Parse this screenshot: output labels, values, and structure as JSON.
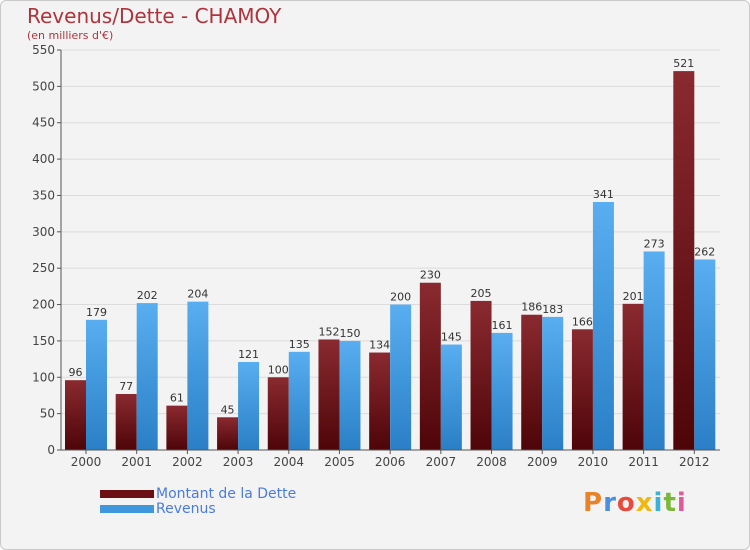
{
  "header": {
    "title": "Revenus/Dette - CHAMOY",
    "subtitle": "(en milliers d'€)"
  },
  "chart_data": {
    "type": "bar",
    "categories": [
      "2000",
      "2001",
      "2002",
      "2003",
      "2004",
      "2005",
      "2006",
      "2007",
      "2008",
      "2009",
      "2010",
      "2011",
      "2012"
    ],
    "series": [
      {
        "name": "Montant de la Dette",
        "values": [
          96,
          77,
          61,
          45,
          100,
          152,
          134,
          230,
          205,
          186,
          166,
          201,
          521
        ],
        "color": "#7a1a1f"
      },
      {
        "name": "Revenus",
        "values": [
          179,
          202,
          204,
          121,
          135,
          150,
          200,
          145,
          161,
          183,
          341,
          273,
          262
        ],
        "color": "#3f98de"
      }
    ],
    "ylim": [
      0,
      550
    ],
    "yticks": [
      0,
      50,
      100,
      150,
      200,
      250,
      300,
      350,
      400,
      450,
      500,
      550
    ],
    "grid": true,
    "legend": "bottom-left"
  },
  "legend": {
    "items": [
      {
        "label": "Montant de la Dette",
        "color": "#6b0f14"
      },
      {
        "label": "Revenus",
        "color": "#3f98de"
      }
    ]
  },
  "logo": {
    "text": "Proxiti",
    "colors": [
      "#e8832a",
      "#4a8fe0",
      "#e84a3c",
      "#f2b90d",
      "#3bb0d8",
      "#7ab83a",
      "#e05a9a"
    ]
  }
}
